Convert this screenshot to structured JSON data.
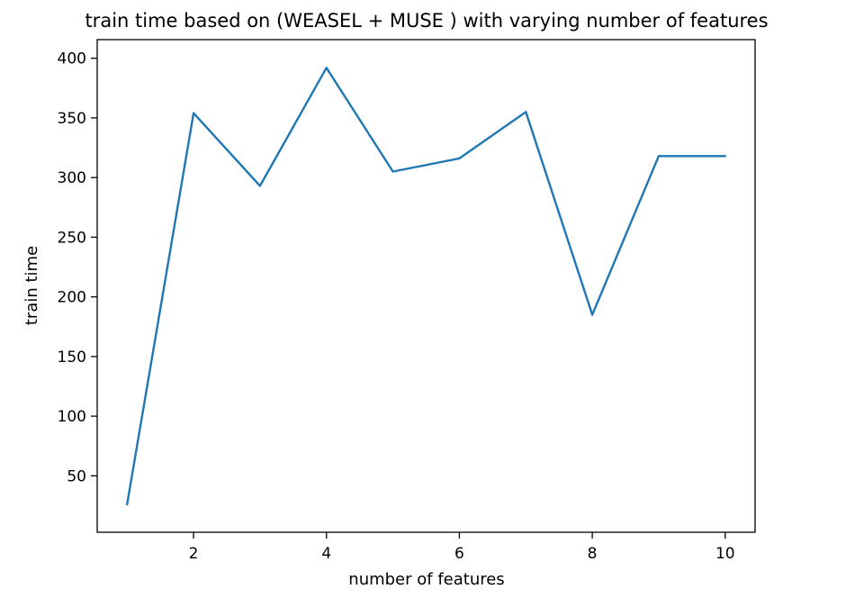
{
  "chart_data": {
    "type": "line",
    "title": "train time based on (WEASEL + MUSE ) with varying number of features",
    "xlabel": "number of features",
    "ylabel": "train time",
    "x": [
      1,
      2,
      3,
      4,
      5,
      6,
      7,
      8,
      9,
      10
    ],
    "series": [
      {
        "values": [
          26,
          354,
          293,
          392,
          305,
          316,
          355,
          185,
          318,
          318
        ],
        "color": "#1f77b4"
      }
    ],
    "xlim": [
      0.55,
      10.45
    ],
    "ylim": [
      2.7,
      415.6
    ],
    "xticks": [
      2,
      4,
      6,
      8,
      10
    ],
    "yticks": [
      50,
      100,
      150,
      200,
      250,
      300,
      350,
      400
    ],
    "xtick_labels": [
      "2",
      "4",
      "6",
      "8",
      "10"
    ],
    "ytick_labels": [
      "50",
      "100",
      "150",
      "200",
      "250",
      "300",
      "350",
      "400"
    ],
    "grid": false,
    "legend": "none"
  }
}
